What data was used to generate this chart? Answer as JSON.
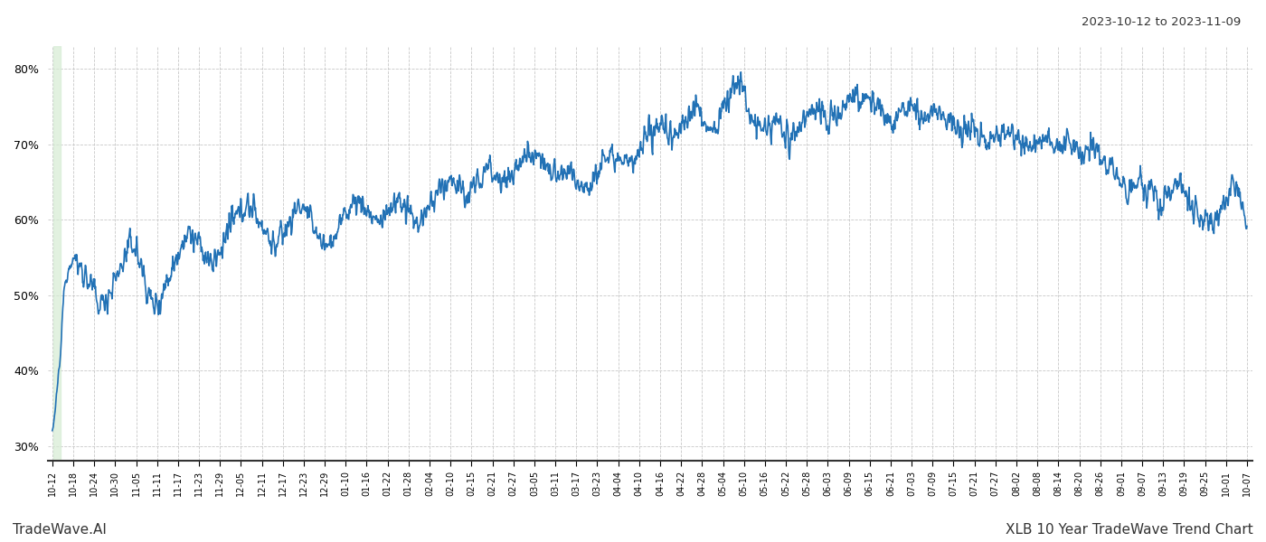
{
  "title_right": "2023-10-12 to 2023-11-09",
  "footer_left": "TradeWave.AI",
  "footer_right": "XLB 10 Year TradeWave Trend Chart",
  "line_color": "#2171b5",
  "line_width": 1.2,
  "bg_color": "#ffffff",
  "grid_color": "#c8c8c8",
  "shade_color": "#d6ecd4",
  "shade_alpha": 0.7,
  "ylim": [
    28,
    83
  ],
  "yticks": [
    30,
    40,
    50,
    60,
    70,
    80
  ],
  "xtick_labels": [
    "10-12",
    "10-18",
    "10-24",
    "10-30",
    "11-05",
    "11-11",
    "11-17",
    "11-23",
    "11-29",
    "12-05",
    "12-11",
    "12-17",
    "12-23",
    "12-29",
    "01-10",
    "01-16",
    "01-22",
    "01-28",
    "02-04",
    "02-10",
    "02-15",
    "02-21",
    "02-27",
    "03-05",
    "03-11",
    "03-17",
    "03-23",
    "04-04",
    "04-10",
    "04-16",
    "04-22",
    "04-28",
    "05-04",
    "05-10",
    "05-16",
    "05-22",
    "05-28",
    "06-03",
    "06-09",
    "06-15",
    "06-21",
    "07-03",
    "07-09",
    "07-15",
    "07-21",
    "07-27",
    "08-02",
    "08-08",
    "08-14",
    "08-20",
    "08-26",
    "09-01",
    "09-07",
    "09-13",
    "09-19",
    "09-25",
    "10-01",
    "10-07"
  ]
}
